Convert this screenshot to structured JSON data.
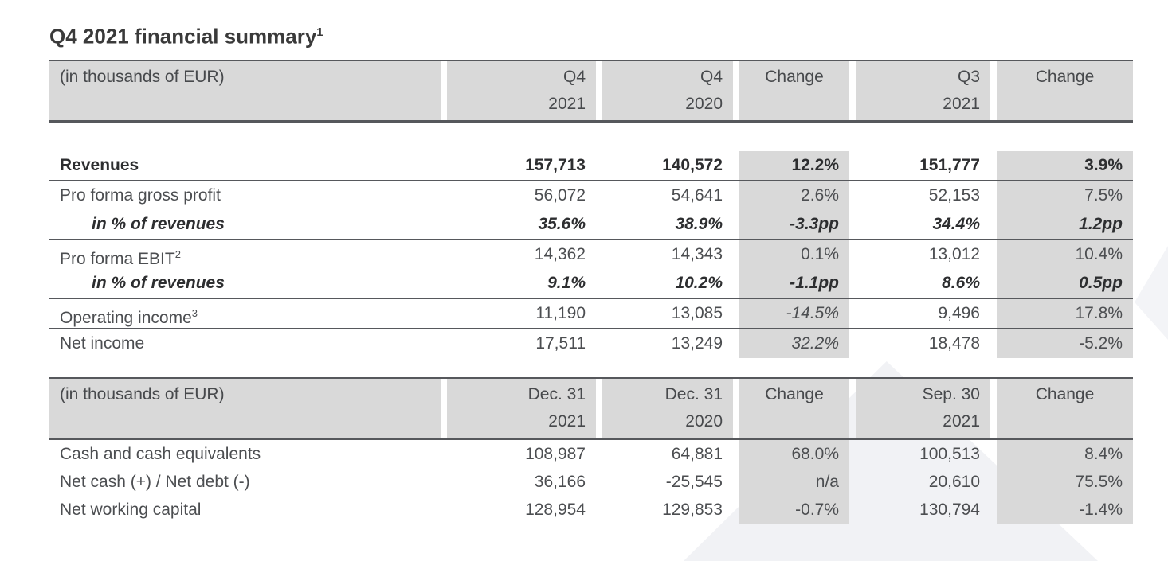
{
  "title": {
    "text": "Q4 2021 financial summary",
    "footnote_ref": "1"
  },
  "income_table": {
    "unit_label": "(in thousands of EUR)",
    "col_headers": [
      "Q4\n2021",
      "Q4\n2020",
      "Change",
      "Q3\n2021",
      "Change"
    ],
    "rows": [
      {
        "label": "Revenues",
        "sup": "",
        "indent": false,
        "emphasis": "bold",
        "values": [
          "157,713",
          "140,572",
          "12.2%",
          "151,777",
          "3.9%"
        ],
        "italic_cells": [],
        "border_after": true
      },
      {
        "label": "Pro forma gross profit",
        "sup": "",
        "indent": false,
        "emphasis": "normal",
        "values": [
          "56,072",
          "54,641",
          "2.6%",
          "52,153",
          "7.5%"
        ],
        "italic_cells": [],
        "border_after": false
      },
      {
        "label": "in % of revenues",
        "sup": "",
        "indent": true,
        "emphasis": "bold-italic",
        "values": [
          "35.6%",
          "38.9%",
          "-3.3pp",
          "34.4%",
          "1.2pp"
        ],
        "italic_cells": [],
        "border_after": true
      },
      {
        "label": "Pro forma EBIT",
        "sup": "2",
        "indent": false,
        "emphasis": "normal",
        "values": [
          "14,362",
          "14,343",
          "0.1%",
          "13,012",
          "10.4%"
        ],
        "italic_cells": [],
        "border_after": false
      },
      {
        "label": "in % of revenues",
        "sup": "",
        "indent": true,
        "emphasis": "bold-italic",
        "values": [
          "9.1%",
          "10.2%",
          "-1.1pp",
          "8.6%",
          "0.5pp"
        ],
        "italic_cells": [],
        "border_after": true
      },
      {
        "label": "Operating income",
        "sup": "3",
        "indent": false,
        "emphasis": "normal",
        "values": [
          "11,190",
          "13,085",
          "-14.5%",
          "9,496",
          "17.8%"
        ],
        "italic_cells": [
          2
        ],
        "border_after": true
      },
      {
        "label": "Net income",
        "sup": "",
        "indent": false,
        "emphasis": "normal",
        "values": [
          "17,511",
          "13,249",
          "32.2%",
          "18,478",
          "-5.2%"
        ],
        "italic_cells": [
          2
        ],
        "border_after": false
      }
    ]
  },
  "balance_table": {
    "unit_label": "(in thousands of EUR)",
    "col_headers": [
      "Dec. 31\n2021",
      "Dec. 31\n2020",
      "Change",
      "Sep. 30\n2021",
      "Change"
    ],
    "rows": [
      {
        "label": "Cash and cash equivalents",
        "sup": "",
        "indent": false,
        "emphasis": "normal",
        "values": [
          "108,987",
          "64,881",
          "68.0%",
          "100,513",
          "8.4%"
        ],
        "italic_cells": [],
        "border_after": false
      },
      {
        "label": "Net cash (+) / Net debt (-)",
        "sup": "",
        "indent": false,
        "emphasis": "normal",
        "values": [
          "36,166",
          "-25,545",
          "n/a",
          "20,610",
          "75.5%"
        ],
        "italic_cells": [],
        "border_after": false
      },
      {
        "label": "Net working capital",
        "sup": "",
        "indent": false,
        "emphasis": "normal",
        "values": [
          "128,954",
          "129,853",
          "-0.7%",
          "130,794",
          "-1.4%"
        ],
        "italic_cells": [],
        "border_after": false
      }
    ]
  },
  "colors": {
    "shade": "#d9d9d9",
    "border": "#56585c",
    "text": "#4c4e51",
    "text_bold": "#2d2e30"
  }
}
